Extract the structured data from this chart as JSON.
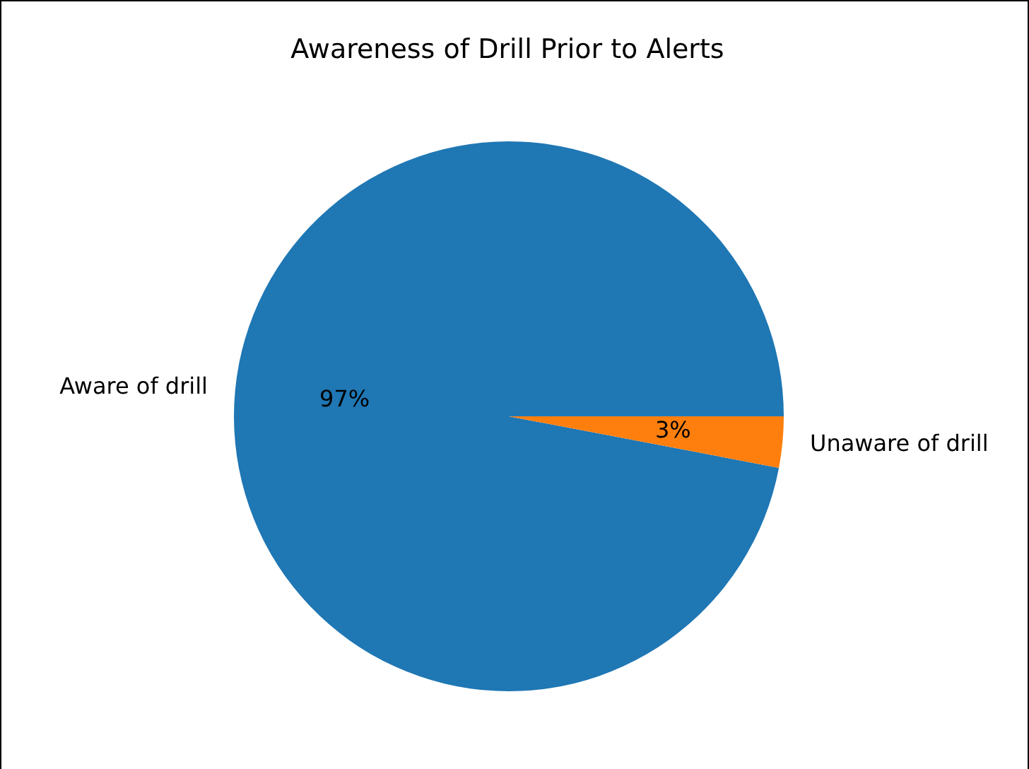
{
  "chart_data": {
    "type": "pie",
    "title": "Awareness of Drill Prior to Alerts",
    "categories": [
      "Aware of drill",
      "Unaware of drill"
    ],
    "values": [
      97,
      3
    ],
    "colors": [
      "#1f77b4",
      "#ff7f0e"
    ],
    "value_labels": [
      "97%",
      "3%"
    ]
  }
}
